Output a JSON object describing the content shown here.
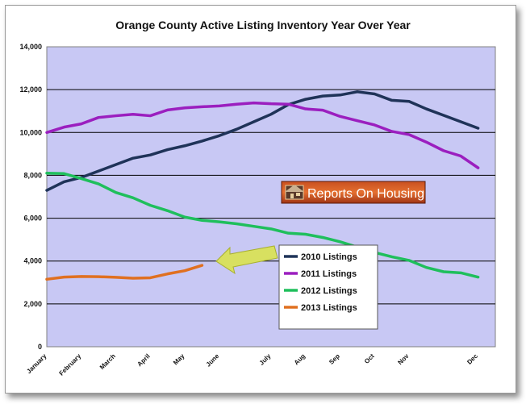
{
  "chart_data": {
    "type": "line",
    "title": "Orange County Active Listing Inventory Year Over Year",
    "xlabel": "",
    "ylabel": "",
    "ylim": [
      0,
      14000
    ],
    "y_ticks": [
      0,
      2000,
      4000,
      6000,
      8000,
      10000,
      12000,
      14000
    ],
    "y_tick_labels": [
      "0",
      "2,000",
      "4,000",
      "6,000",
      "8,000",
      "10,000",
      "12,000",
      "14,000"
    ],
    "x_range": [
      0,
      26
    ],
    "x_ticks": [
      0,
      2,
      4,
      6,
      8,
      10,
      13,
      15,
      17,
      19,
      21,
      25
    ],
    "x_tick_labels": [
      "January",
      "February",
      "March",
      "April",
      "May",
      "June",
      "July",
      "Aug",
      "Sep",
      "Oct",
      "Nov",
      "Dec"
    ],
    "grid": true,
    "legend_position": "bottom-right",
    "series": [
      {
        "name": "2010 Listings",
        "color": "#1f3358",
        "values": [
          7300,
          7700,
          7900,
          8200,
          8500,
          8800,
          8950,
          9200,
          9380,
          9600,
          9850,
          10150,
          10500,
          10850,
          11300,
          11550,
          11700,
          11750,
          11900,
          11800,
          11500,
          11450,
          11100,
          10800,
          10500,
          10200
        ]
      },
      {
        "name": "2011 Listings",
        "color": "#9b1fbf",
        "values": [
          10000,
          10250,
          10400,
          10700,
          10780,
          10850,
          10780,
          11050,
          11150,
          11200,
          11240,
          11320,
          11380,
          11340,
          11320,
          11100,
          11040,
          10750,
          10550,
          10350,
          10050,
          9900,
          9550,
          9150,
          8900,
          8350
        ]
      },
      {
        "name": "2012 Listings",
        "color": "#1fbf5c",
        "values": [
          8100,
          8080,
          7850,
          7600,
          7200,
          6950,
          6600,
          6350,
          6050,
          5900,
          5830,
          5740,
          5620,
          5500,
          5300,
          5250,
          5100,
          4900,
          4650,
          4400,
          4200,
          4030,
          3700,
          3500,
          3450,
          3250
        ]
      },
      {
        "name": "2013 Listings",
        "color": "#e07020",
        "values": [
          3150,
          3250,
          3280,
          3270,
          3240,
          3200,
          3220,
          3400,
          3550,
          3800
        ]
      }
    ]
  },
  "logo": {
    "label": "Reports On Housing",
    "colors": [
      "#8a2a10",
      "#e06020"
    ]
  },
  "colors": {
    "plot_background": "#c8c8f4",
    "arrow": "#d8e060"
  }
}
